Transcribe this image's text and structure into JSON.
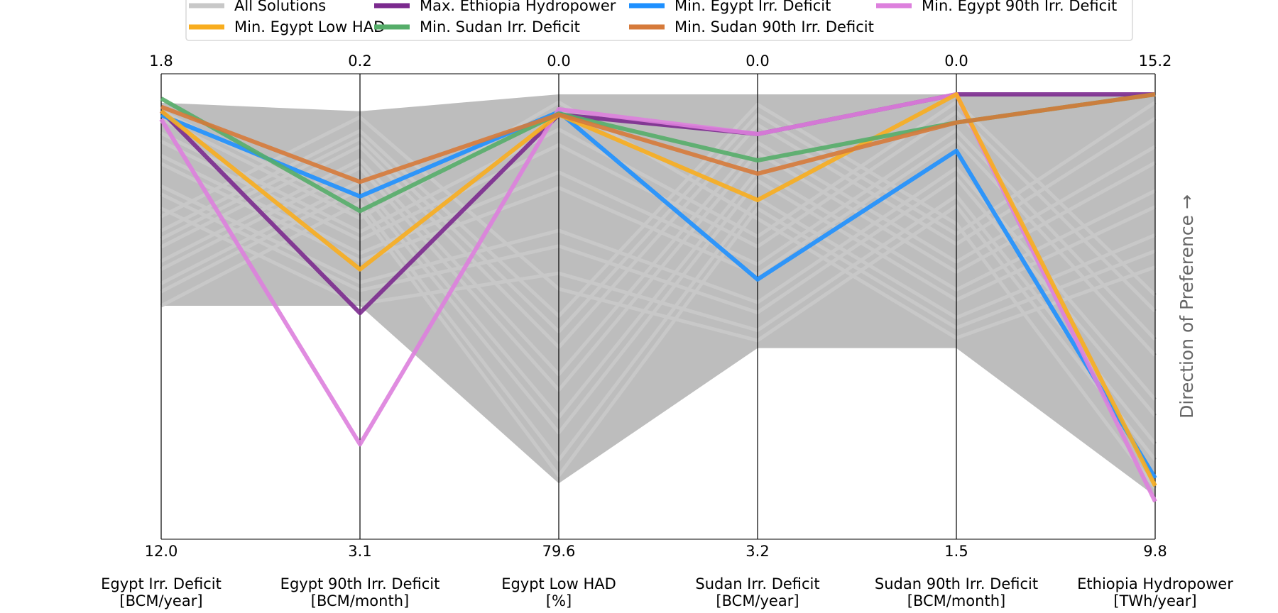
{
  "chart_data": {
    "type": "parallel-coordinates",
    "side_label": "Direction of Preference →",
    "legend": {
      "placement": "top",
      "entries": [
        {
          "key": "all",
          "label": "All Solutions"
        },
        {
          "key": "hyd",
          "label": "Max. Ethiopia Hydropower"
        },
        {
          "key": "eid",
          "label": "Min. Egypt Irr. Deficit"
        },
        {
          "key": "e90",
          "label": "Min. Egypt 90th Irr. Deficit"
        },
        {
          "key": "had",
          "label": "Min. Egypt Low HAD"
        },
        {
          "key": "sid",
          "label": "Min. Sudan Irr. Deficit"
        },
        {
          "key": "s90",
          "label": "Min. Sudan 90th Irr. Deficit"
        }
      ]
    },
    "axes": [
      {
        "label": "Egypt Irr. Deficit",
        "unit": "[BCM/year]",
        "top": "1.8",
        "bottom": "12.0",
        "best": 1.8,
        "worst": 12.0
      },
      {
        "label": "Egypt 90th Irr. Deficit",
        "unit": "[BCM/month]",
        "top": "0.2",
        "bottom": "3.1",
        "best": 0.2,
        "worst": 3.1
      },
      {
        "label": "Egypt Low HAD",
        "unit": "[%]",
        "top": "0.0",
        "bottom": "79.6",
        "best": 0.0,
        "worst": 79.6
      },
      {
        "label": "Sudan Irr. Deficit",
        "unit": "[BCM/year]",
        "top": "0.0",
        "bottom": "3.2",
        "best": 0.0,
        "worst": 3.2
      },
      {
        "label": "Sudan 90th Irr. Deficit",
        "unit": "[BCM/month]",
        "top": "0.0",
        "bottom": "1.5",
        "best": 0.0,
        "worst": 1.5
      },
      {
        "label": "Ethiopia Hydropower",
        "unit": "[TWh/year]",
        "top": "15.2",
        "bottom": "9.8",
        "best": 15.2,
        "worst": 9.8
      }
    ],
    "band_upper": [
      0.98,
      0.96,
      1.0,
      1.0,
      1.0,
      1.0
    ],
    "band_lower": [
      0.5,
      0.5,
      0.08,
      0.4,
      0.4,
      0.05
    ],
    "series": [
      {
        "key": "hyd",
        "color": "#7b2a8e",
        "values": [
          2.2,
          1.7,
          3.8,
          0.3,
          0.0,
          15.2
        ]
      },
      {
        "key": "eid",
        "color": "#1e90ff",
        "values": [
          2.3,
          0.9,
          3.3,
          1.4,
          0.2,
          10.3
        ]
      },
      {
        "key": "e90",
        "color": "#dd80dd",
        "values": [
          2.4,
          2.6,
          2.8,
          0.3,
          0.0,
          10.0
        ]
      },
      {
        "key": "had",
        "color": "#f8ad1e",
        "values": [
          2.2,
          1.4,
          3.8,
          0.8,
          0.0,
          10.2
        ]
      },
      {
        "key": "sid",
        "color": "#55ad69",
        "values": [
          1.9,
          1.0,
          3.6,
          0.5,
          0.1,
          15.2
        ]
      },
      {
        "key": "s90",
        "color": "#d67a3a",
        "values": [
          2.1,
          0.8,
          3.8,
          0.6,
          0.1,
          15.2
        ]
      }
    ]
  }
}
